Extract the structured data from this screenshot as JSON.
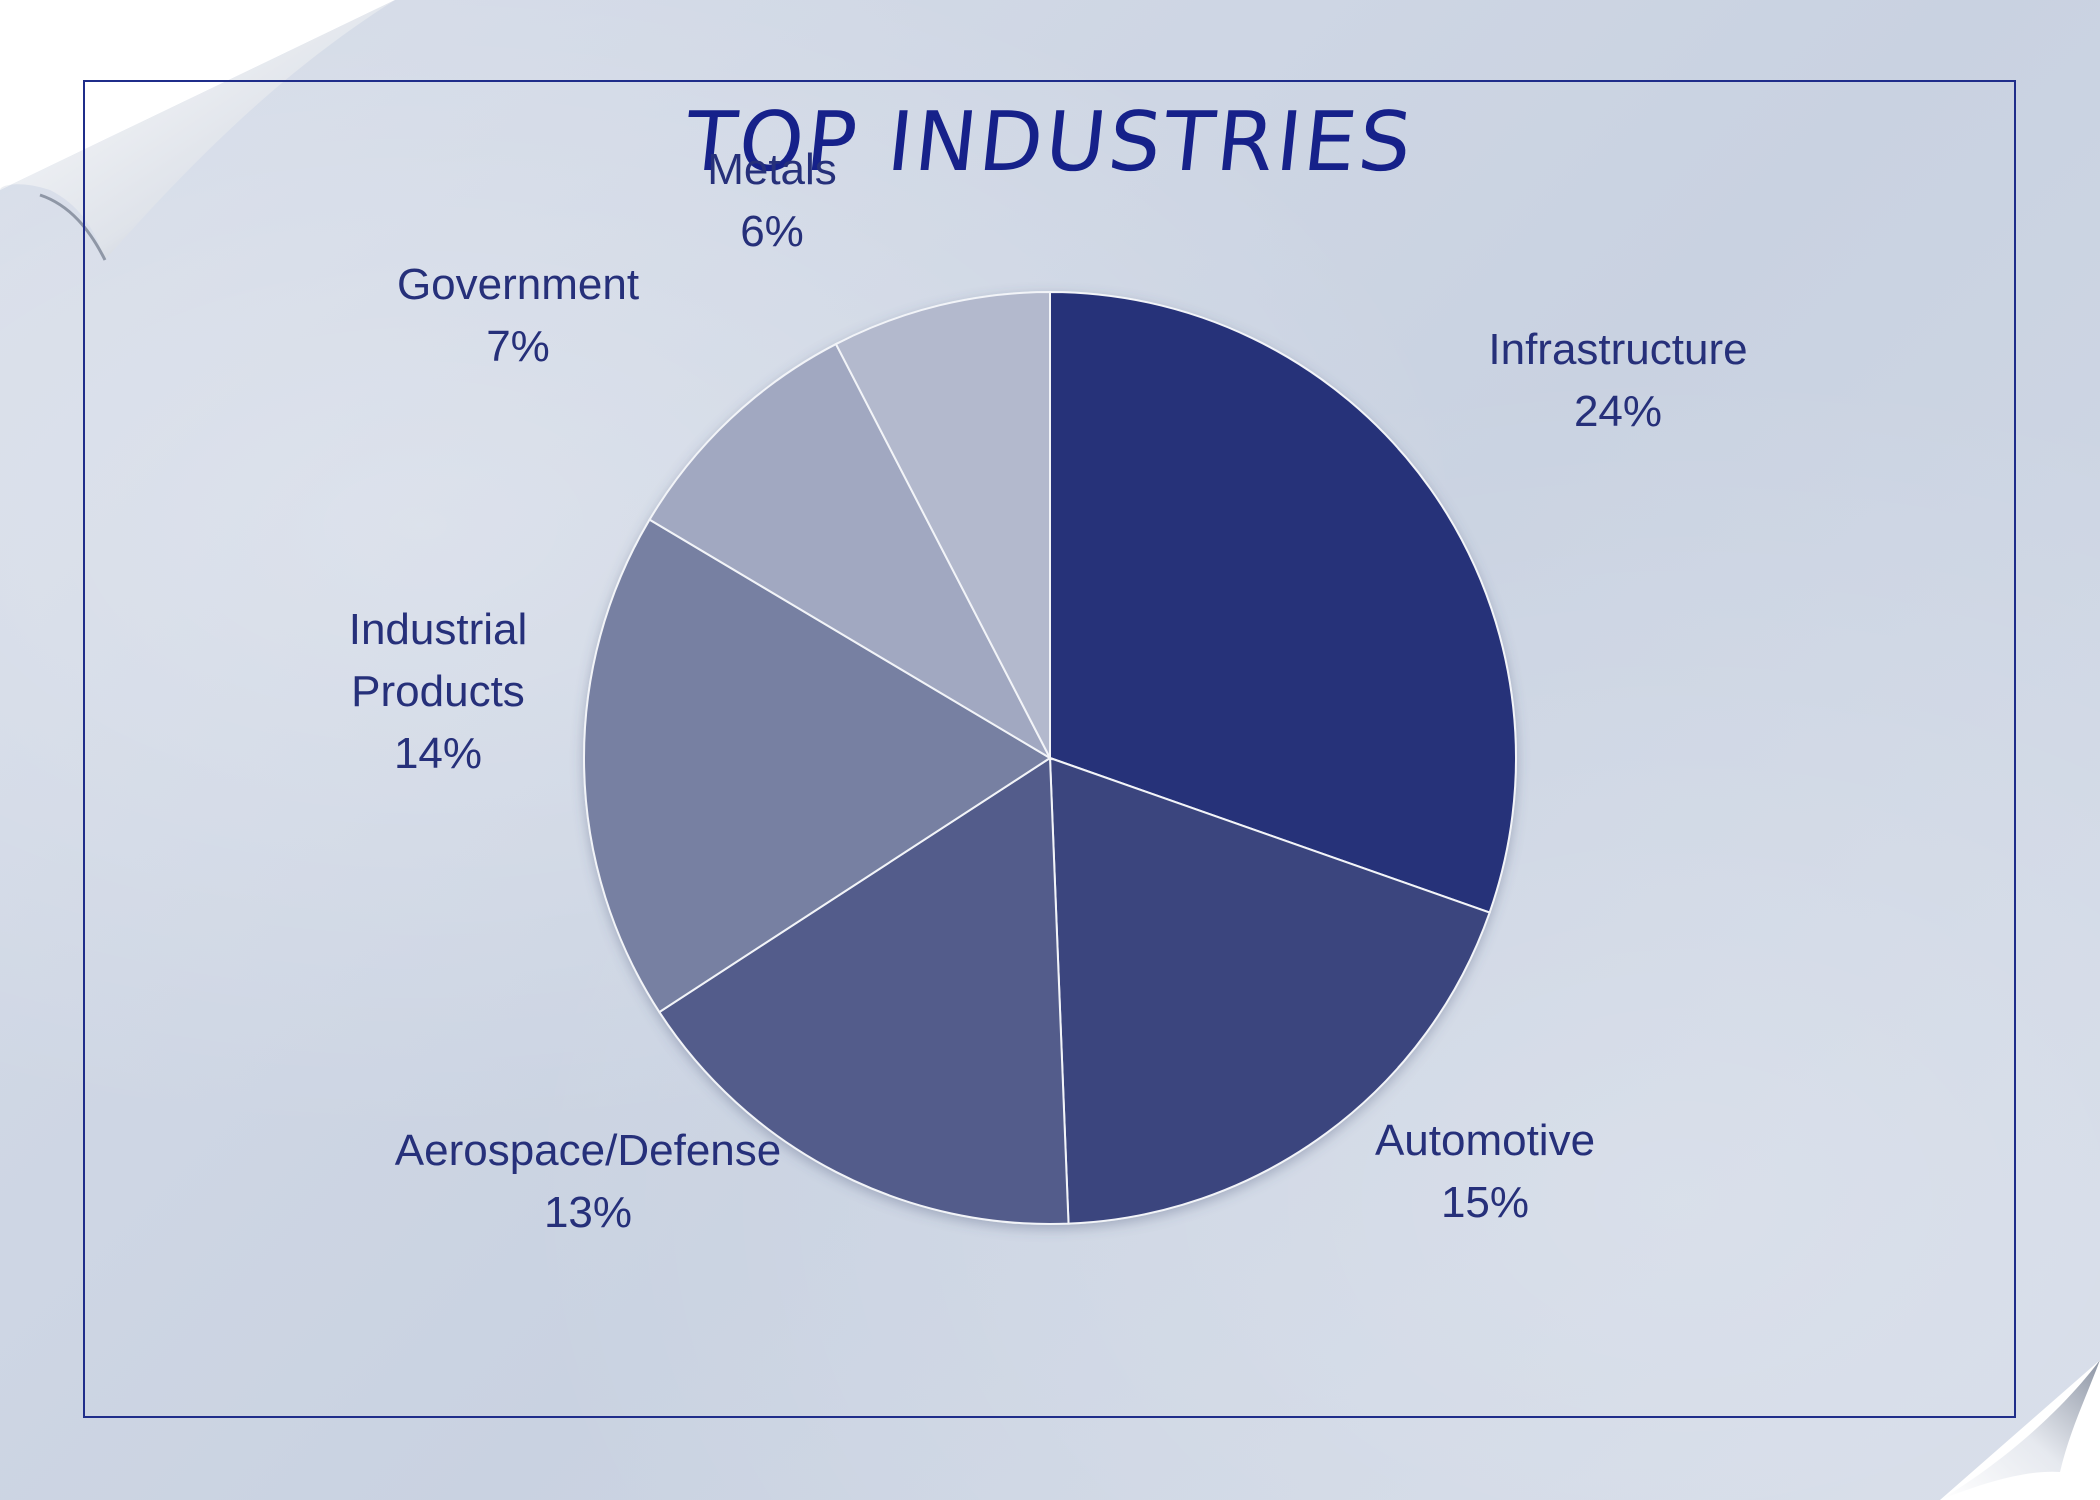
{
  "chart_data": {
    "type": "pie",
    "title": "TOP INDUSTRIES",
    "categories": [
      "Infrastructure",
      "Automotive",
      "Aerospace/Defense",
      "Industrial Products",
      "Government",
      "Metals"
    ],
    "values": [
      24,
      15,
      13,
      14,
      7,
      6
    ],
    "value_labels": [
      "24%",
      "15%",
      "13%",
      "14%",
      "7%",
      "6%"
    ],
    "label_lines": [
      [
        "Infrastructure",
        "24%"
      ],
      [
        "Automotive",
        "15%"
      ],
      [
        "Aerospace/Defense",
        "13%"
      ],
      [
        "Industrial",
        "Products",
        "14%"
      ],
      [
        "Government",
        "7%"
      ],
      [
        "Metals",
        "6%"
      ]
    ],
    "colors": [
      "#253179",
      "#3a447e",
      "#525c8b",
      "#7780a2",
      "#a1a8c1",
      "#b3b9cd"
    ],
    "start_angle": "12 o'clock",
    "direction": "clockwise",
    "legend": "none",
    "data_labels": "outside"
  },
  "colors": {
    "title": "#16218a",
    "frame": "#1f2d8a",
    "label": "#26307a",
    "slice_border": "#f2f4f8"
  }
}
